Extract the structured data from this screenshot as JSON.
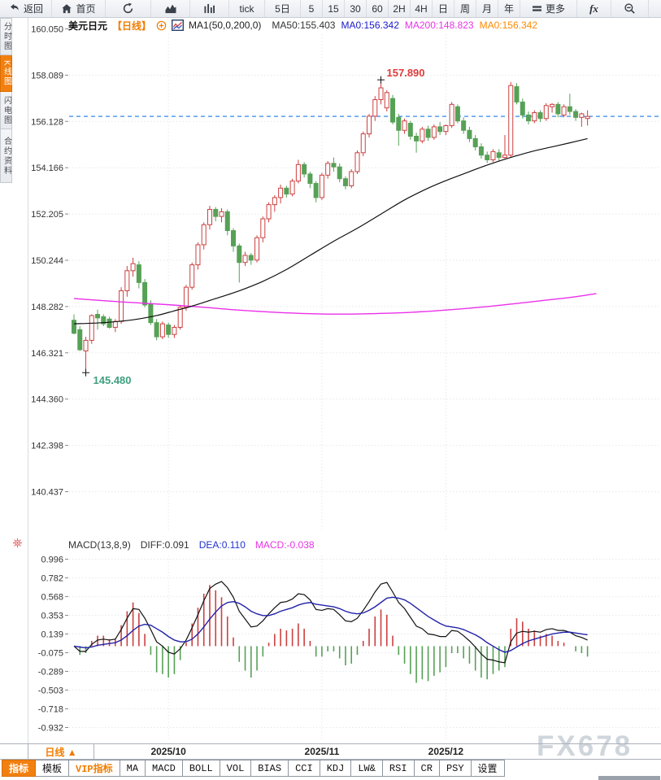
{
  "toolbar": {
    "items": [
      {
        "name": "back-button",
        "icon": "back-arrow-icon",
        "label": "返回"
      },
      {
        "name": "home-button",
        "icon": "home-icon",
        "label": "首页"
      },
      {
        "name": "refresh-button",
        "icon": "refresh-icon"
      },
      {
        "name": "area-chart-button",
        "icon": "area-chart-icon"
      },
      {
        "name": "volume-bars-button",
        "icon": "volume-bars-icon"
      },
      {
        "name": "tick-button",
        "label": "tick"
      },
      {
        "name": "period-5d-button",
        "label": "5日"
      },
      {
        "name": "period-5-button",
        "label": "5"
      },
      {
        "name": "period-15-button",
        "label": "15"
      },
      {
        "name": "period-30-button",
        "label": "30"
      },
      {
        "name": "period-60-button",
        "label": "60"
      },
      {
        "name": "period-2h-button",
        "label": "2H"
      },
      {
        "name": "period-4h-button",
        "label": "4H"
      },
      {
        "name": "period-day-button",
        "label": "日"
      },
      {
        "name": "period-week-button",
        "label": "周"
      },
      {
        "name": "period-month-button",
        "label": "月"
      },
      {
        "name": "period-year-button",
        "label": "年"
      },
      {
        "name": "more-button",
        "icon": "menu-icon",
        "label": "更多"
      },
      {
        "name": "fx-button",
        "label": "fx",
        "style": "fx"
      },
      {
        "name": "zoom-out-button",
        "icon": "zoom-out-icon"
      }
    ]
  },
  "sidebar": {
    "tabs": [
      {
        "name": "tab-time-chart",
        "label": "分时图",
        "active": false
      },
      {
        "name": "tab-kline-chart",
        "label": "K线图",
        "active": true
      },
      {
        "name": "tab-lightning-chart",
        "label": "闪电图",
        "active": false
      },
      {
        "name": "tab-contract-info",
        "label": "合约资料",
        "active": false
      }
    ]
  },
  "header": {
    "symbol": "美元日元",
    "period": "【日线】",
    "ma_settings": "MA1(50,0,200,0)",
    "ma_items": [
      {
        "label": "MA50:155.403",
        "color": "#333333"
      },
      {
        "label": "MA0:156.342",
        "color": "#1a1ac8"
      },
      {
        "label": "MA200:148.823",
        "color": "#e535e5"
      },
      {
        "label": "MA0:156.342",
        "color": "#ff8a00"
      }
    ]
  },
  "macd": {
    "title": "MACD(13,8,9)",
    "items": [
      {
        "label": "DIFF:0.091",
        "color": "#333333"
      },
      {
        "label": "DEA:0.110",
        "color": "#2233cc"
      },
      {
        "label": "MACD:-0.038",
        "color": "#e535e5"
      }
    ]
  },
  "bottom": {
    "period_button": "日线 ▲",
    "watermark": "FX678",
    "tabs": [
      {
        "name": "tab-indicators",
        "label": "指标",
        "state": "active"
      },
      {
        "name": "tab-templates",
        "label": "模板"
      },
      {
        "name": "tab-vip-indicators",
        "label": "VIP指标",
        "state": "vip"
      },
      {
        "name": "tab-ma",
        "label": "MA"
      },
      {
        "name": "tab-macd",
        "label": "MACD"
      },
      {
        "name": "tab-boll",
        "label": "BOLL"
      },
      {
        "name": "tab-vol",
        "label": "VOL"
      },
      {
        "name": "tab-bias",
        "label": "BIAS"
      },
      {
        "name": "tab-cci",
        "label": "CCI"
      },
      {
        "name": "tab-kdj",
        "label": "KDJ"
      },
      {
        "name": "tab-lw",
        "label": "LW&"
      },
      {
        "name": "tab-rsi",
        "label": "RSI"
      },
      {
        "name": "tab-cr",
        "label": "CR"
      },
      {
        "name": "tab-psy",
        "label": "PSY"
      },
      {
        "name": "tab-settings",
        "label": "设置"
      }
    ]
  },
  "colors": {
    "up": "#cc4040",
    "down": "#56a156",
    "ma50": "#111111",
    "ma200": "#ea30ea",
    "diff": "#111111",
    "dea": "#2222aa",
    "last_price_line": "#1e7ae8",
    "high_label": "#e03b3b",
    "low_label": "#3fa080",
    "accent_orange": "#f07d00",
    "grid": "#e6e8ec"
  },
  "chart_data": {
    "type": "candlestick",
    "title": "美元日元【日线】",
    "y_ticks": [
      "160.050",
      "158.089",
      "156.128",
      "154.166",
      "152.205",
      "150.244",
      "148.282",
      "146.321",
      "144.360",
      "142.398",
      "140.437"
    ],
    "macd_ticks": [
      "0.996",
      "0.782",
      "0.568",
      "0.353",
      "0.139",
      "-0.075",
      "-0.289",
      "-0.503",
      "-0.718",
      "-0.932"
    ],
    "x_labels": [
      {
        "label": "2025/10",
        "index": 16
      },
      {
        "label": "2025/11",
        "index": 42
      },
      {
        "label": "2025/12",
        "index": 63
      }
    ],
    "last_price": 156.342,
    "annotations": {
      "high": {
        "index": 52,
        "value": 157.89,
        "label": "157.890"
      },
      "low": {
        "index": 2,
        "value": 145.48,
        "label": "145.480"
      }
    },
    "macd_params": {
      "p1": 13,
      "p2": 8,
      "p3": 9
    },
    "candles": [
      [
        147.7,
        147.95,
        147.1,
        147.15
      ],
      [
        147.3,
        147.45,
        146.4,
        146.45
      ],
      [
        146.4,
        147.0,
        145.48,
        146.85
      ],
      [
        146.85,
        147.95,
        146.7,
        147.9
      ],
      [
        147.95,
        148.15,
        147.3,
        147.8
      ],
      [
        147.85,
        147.95,
        147.45,
        147.55
      ],
      [
        147.75,
        147.85,
        147.35,
        147.4
      ],
      [
        147.4,
        147.75,
        147.2,
        147.65
      ],
      [
        147.65,
        149.1,
        147.55,
        148.95
      ],
      [
        148.95,
        150.0,
        148.7,
        149.8
      ],
      [
        149.8,
        150.35,
        149.55,
        150.1
      ],
      [
        150.05,
        150.2,
        149.05,
        149.3
      ],
      [
        149.3,
        149.45,
        148.25,
        148.35
      ],
      [
        148.4,
        148.55,
        147.5,
        147.6
      ],
      [
        147.6,
        147.75,
        146.85,
        147.0
      ],
      [
        147.0,
        147.65,
        146.9,
        147.55
      ],
      [
        147.5,
        147.6,
        146.95,
        147.1
      ],
      [
        147.1,
        147.5,
        146.95,
        147.4
      ],
      [
        147.4,
        148.35,
        147.3,
        148.25
      ],
      [
        148.25,
        149.2,
        148.1,
        149.1
      ],
      [
        149.1,
        150.15,
        149.0,
        150.05
      ],
      [
        150.05,
        151.0,
        149.85,
        150.9
      ],
      [
        150.9,
        151.85,
        150.7,
        151.75
      ],
      [
        151.75,
        152.55,
        151.55,
        152.4
      ],
      [
        152.4,
        152.5,
        151.9,
        152.1
      ],
      [
        152.1,
        152.45,
        151.85,
        152.3
      ],
      [
        152.3,
        152.4,
        151.3,
        151.5
      ],
      [
        151.5,
        151.6,
        150.6,
        150.85
      ],
      [
        150.85,
        150.95,
        149.3,
        150.15
      ],
      [
        150.15,
        150.6,
        150.0,
        150.45
      ],
      [
        150.45,
        150.55,
        150.05,
        150.25
      ],
      [
        150.25,
        151.3,
        150.15,
        151.2
      ],
      [
        151.2,
        152.1,
        151.0,
        152.0
      ],
      [
        152.0,
        152.7,
        151.85,
        152.6
      ],
      [
        152.6,
        153.0,
        152.3,
        152.9
      ],
      [
        152.9,
        153.45,
        152.65,
        153.3
      ],
      [
        153.3,
        153.4,
        152.9,
        153.05
      ],
      [
        153.05,
        153.7,
        152.95,
        153.6
      ],
      [
        153.6,
        154.5,
        153.5,
        154.3
      ],
      [
        154.3,
        154.4,
        153.75,
        153.9
      ],
      [
        153.9,
        154.0,
        153.3,
        153.5
      ],
      [
        153.5,
        153.6,
        152.7,
        152.9
      ],
      [
        152.9,
        153.95,
        152.8,
        153.85
      ],
      [
        153.85,
        154.45,
        153.7,
        154.35
      ],
      [
        154.35,
        154.6,
        154.0,
        154.2
      ],
      [
        154.2,
        154.35,
        153.55,
        153.7
      ],
      [
        153.7,
        153.8,
        153.25,
        153.4
      ],
      [
        153.4,
        154.1,
        153.3,
        154.0
      ],
      [
        154.0,
        154.9,
        153.9,
        154.8
      ],
      [
        154.8,
        155.7,
        154.65,
        155.6
      ],
      [
        155.6,
        156.45,
        155.45,
        156.35
      ],
      [
        156.35,
        157.2,
        156.15,
        157.05
      ],
      [
        157.05,
        157.89,
        156.85,
        157.55
      ],
      [
        156.7,
        157.45,
        156.55,
        157.35
      ],
      [
        157.1,
        157.25,
        156.0,
        156.1
      ],
      [
        156.3,
        156.45,
        155.1,
        155.75
      ],
      [
        155.75,
        156.25,
        155.6,
        156.15
      ],
      [
        156.05,
        156.15,
        155.35,
        155.5
      ],
      [
        155.5,
        155.65,
        154.8,
        155.3
      ],
      [
        155.3,
        155.9,
        155.2,
        155.8
      ],
      [
        155.8,
        155.95,
        155.3,
        155.45
      ],
      [
        155.45,
        156.0,
        155.35,
        155.9
      ],
      [
        155.9,
        156.1,
        155.55,
        155.7
      ],
      [
        155.7,
        156.0,
        155.55,
        155.95
      ],
      [
        155.95,
        156.95,
        155.85,
        156.85
      ],
      [
        156.75,
        156.85,
        156.05,
        156.15
      ],
      [
        156.15,
        156.3,
        155.6,
        155.75
      ],
      [
        155.75,
        155.9,
        155.25,
        155.4
      ],
      [
        155.4,
        155.55,
        154.9,
        155.05
      ],
      [
        155.05,
        155.2,
        154.55,
        154.7
      ],
      [
        154.7,
        154.85,
        154.36,
        154.5
      ],
      [
        154.5,
        154.95,
        154.4,
        154.85
      ],
      [
        154.8,
        154.95,
        154.45,
        154.6
      ],
      [
        154.6,
        155.55,
        154.55,
        154.7
      ],
      [
        154.7,
        157.8,
        154.6,
        157.65
      ],
      [
        157.6,
        157.75,
        156.85,
        156.95
      ],
      [
        156.95,
        157.1,
        156.25,
        156.4
      ],
      [
        156.4,
        156.55,
        156.0,
        156.15
      ],
      [
        156.15,
        156.6,
        156.05,
        156.5
      ],
      [
        156.5,
        156.6,
        156.1,
        156.25
      ],
      [
        156.25,
        156.9,
        156.15,
        156.8
      ],
      [
        156.75,
        156.9,
        156.5,
        156.85
      ],
      [
        156.85,
        156.95,
        156.3,
        156.45
      ],
      [
        156.4,
        156.85,
        156.3,
        156.75
      ],
      [
        156.75,
        157.3,
        156.4,
        156.55
      ],
      [
        156.55,
        156.65,
        156.15,
        156.3
      ],
      [
        156.3,
        156.5,
        155.9,
        156.45
      ],
      [
        156.25,
        156.6,
        155.95,
        156.34
      ]
    ],
    "ma50_points": [
      [
        0,
        147.55
      ],
      [
        5,
        147.6
      ],
      [
        10,
        147.72
      ],
      [
        14,
        147.9
      ],
      [
        17,
        148.1
      ],
      [
        20,
        148.3
      ],
      [
        24,
        148.62
      ],
      [
        28,
        148.95
      ],
      [
        32,
        149.35
      ],
      [
        36,
        149.85
      ],
      [
        40,
        150.45
      ],
      [
        44,
        151.05
      ],
      [
        48,
        151.6
      ],
      [
        52,
        152.2
      ],
      [
        56,
        152.8
      ],
      [
        60,
        153.3
      ],
      [
        63,
        153.62
      ],
      [
        67,
        154.0
      ],
      [
        70,
        154.28
      ],
      [
        74,
        154.6
      ],
      [
        78,
        154.88
      ],
      [
        81,
        155.05
      ],
      [
        84,
        155.22
      ],
      [
        87,
        155.4
      ]
    ],
    "ma200_points": [
      [
        0,
        148.62
      ],
      [
        8,
        148.48
      ],
      [
        16,
        148.36
      ],
      [
        22,
        148.25
      ],
      [
        28,
        148.13
      ],
      [
        34,
        148.04
      ],
      [
        40,
        147.98
      ],
      [
        46,
        147.96
      ],
      [
        52,
        147.99
      ],
      [
        58,
        148.05
      ],
      [
        64,
        148.15
      ],
      [
        70,
        148.28
      ],
      [
        76,
        148.44
      ],
      [
        81,
        148.58
      ],
      [
        85,
        148.7
      ],
      [
        88.5,
        148.83
      ]
    ]
  }
}
